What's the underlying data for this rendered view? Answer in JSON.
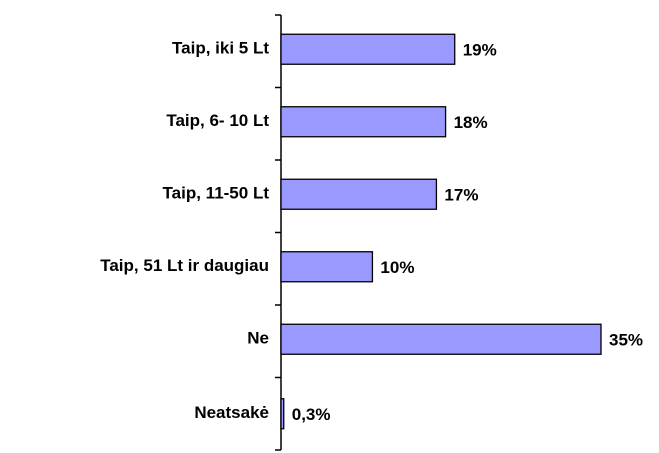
{
  "chart_data": {
    "type": "bar",
    "orientation": "horizontal",
    "categories": [
      "Taip, iki 5 Lt",
      "Taip, 6- 10 Lt",
      "Taip, 11-50 Lt",
      "Taip, 51 Lt ir daugiau",
      "Ne",
      "Neatsakė"
    ],
    "values": [
      19,
      18,
      17,
      10,
      35,
      0.3
    ],
    "value_labels": [
      "19%",
      "18%",
      "17%",
      "10%",
      "35%",
      "0,3%"
    ],
    "color": "#9999ff"
  }
}
